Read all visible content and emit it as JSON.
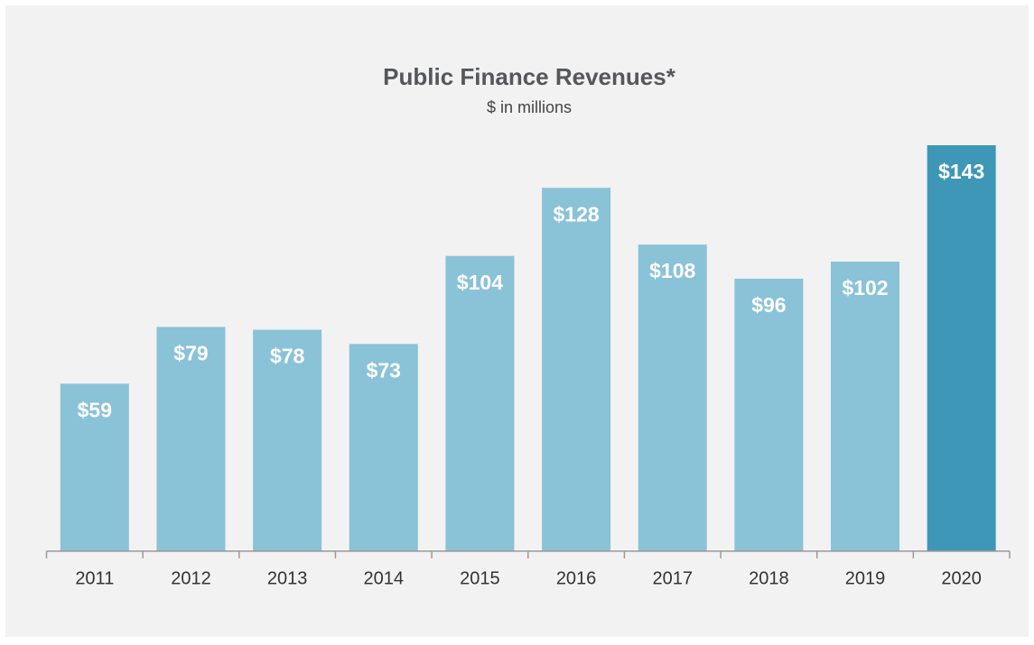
{
  "chart_data": {
    "type": "bar",
    "title": "Public Finance Revenues*",
    "subtitle": "$ in millions",
    "categories": [
      "2011",
      "2012",
      "2013",
      "2014",
      "2015",
      "2016",
      "2017",
      "2018",
      "2019",
      "2020"
    ],
    "values": [
      59,
      79,
      78,
      73,
      104,
      128,
      108,
      96,
      102,
      143
    ],
    "value_labels": [
      "$59",
      "$79",
      "$78",
      "$73",
      "$104",
      "$128",
      "$108",
      "$96",
      "$102",
      "$143"
    ],
    "colors": [
      "#8ac2d8",
      "#8ac2d8",
      "#8ac2d8",
      "#8ac2d8",
      "#8ac2d8",
      "#8ac2d8",
      "#8ac2d8",
      "#8ac2d8",
      "#8ac2d8",
      "#3e97b6"
    ],
    "grid": false
  }
}
